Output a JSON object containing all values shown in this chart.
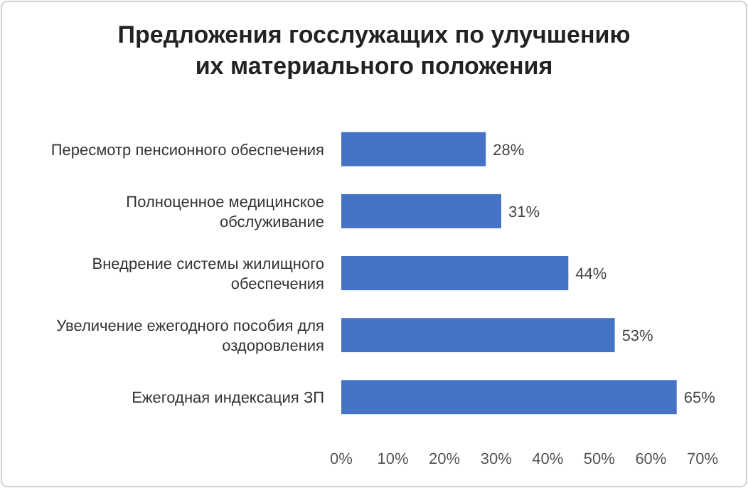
{
  "chart_data": {
    "type": "bar",
    "orientation": "horizontal",
    "title": "Предложения госслужащих по улучшению их материального  положения",
    "categories": [
      "Пересмотр пенсионного обеспечения",
      "Полноценное медицинское обслуживание",
      "Внедрение системы жилищного обеспечения",
      "Увеличение ежегодного пособия для оздоровления",
      "Ежегодная индексация ЗП"
    ],
    "values": [
      28,
      31,
      44,
      53,
      65
    ],
    "value_labels": [
      "28%",
      "31%",
      "44%",
      "53%",
      "65%"
    ],
    "color": "#4472c4",
    "xlim": [
      0,
      70
    ],
    "xticks": [
      {
        "value": 0,
        "label": "0%"
      },
      {
        "value": 10,
        "label": "10%"
      },
      {
        "value": 20,
        "label": "20%"
      },
      {
        "value": 30,
        "label": "30%"
      },
      {
        "value": 40,
        "label": "40%"
      },
      {
        "value": 50,
        "label": "50%"
      },
      {
        "value": 60,
        "label": "60%"
      },
      {
        "value": 70,
        "label": "70%"
      }
    ],
    "grid": false
  }
}
